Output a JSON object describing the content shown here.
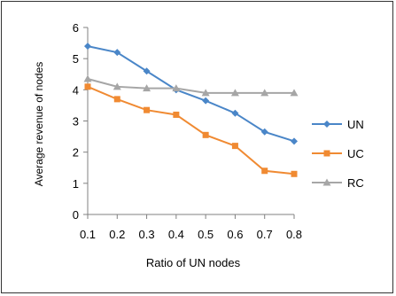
{
  "chart_data": {
    "type": "line",
    "x": [
      0.1,
      0.2,
      0.3,
      0.4,
      0.5,
      0.6,
      0.7,
      0.8
    ],
    "x_tick_labels": [
      "0.1",
      "0.2",
      "0.3",
      "0.4",
      "0.5",
      "0.6",
      "0.7",
      "0.8"
    ],
    "y_ticks": [
      0,
      1,
      2,
      3,
      4,
      5,
      6
    ],
    "ylim": [
      0,
      6
    ],
    "xlabel": "Ratio of UN nodes",
    "ylabel": "Average revenue of nodes",
    "title": "",
    "grid": false,
    "legend_position": "right",
    "series": [
      {
        "name": "UN",
        "color": "#4a86c8",
        "marker": "diamond",
        "values": [
          5.4,
          5.2,
          4.6,
          4.0,
          3.65,
          3.25,
          2.65,
          2.35
        ]
      },
      {
        "name": "UC",
        "color": "#f08a32",
        "marker": "square",
        "values": [
          4.1,
          3.7,
          3.35,
          3.2,
          2.55,
          2.2,
          1.4,
          1.3
        ]
      },
      {
        "name": "RC",
        "color": "#a6a6a6",
        "marker": "triangle",
        "values": [
          4.35,
          4.1,
          4.05,
          4.05,
          3.9,
          3.9,
          3.9,
          3.9
        ]
      }
    ]
  }
}
